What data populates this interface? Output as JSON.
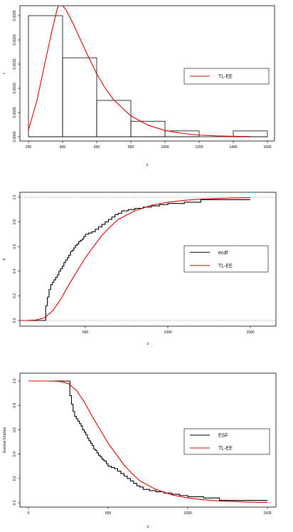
{
  "chart_data": [
    {
      "type": "histogram",
      "xlabel": "z",
      "ylabel": "f",
      "xlim": [
        200,
        1600
      ],
      "ylim": [
        0,
        0.0025
      ],
      "x_ticks": [
        "200",
        "400",
        "600",
        "800",
        "1000",
        "1200",
        "1400",
        "1600"
      ],
      "y_ticks": [
        "0.0000",
        "0.0005",
        "0.0010",
        "0.0015",
        "0.0020",
        "0.0025"
      ],
      "bins": [
        {
          "from": 200,
          "to": 400,
          "density": 0.0025
        },
        {
          "from": 400,
          "to": 600,
          "density": 0.00163
        },
        {
          "from": 600,
          "to": 800,
          "density": 0.00075
        },
        {
          "from": 800,
          "to": 1000,
          "density": 0.00032
        },
        {
          "from": 1000,
          "to": 1200,
          "density": 0.00012
        },
        {
          "from": 1200,
          "to": 1400,
          "density": 0.0
        },
        {
          "from": 1400,
          "to": 1600,
          "density": 0.00012
        }
      ],
      "series": [
        {
          "name": "TL-EE",
          "color": "#dd0000",
          "x": [
            200,
            250,
            300,
            340,
            370,
            390,
            420,
            460,
            500,
            550,
            600,
            650,
            700,
            800,
            900,
            1000,
            1100,
            1200,
            1300,
            1400,
            1500
          ],
          "y": [
            0.00014,
            0.00075,
            0.00158,
            0.00222,
            0.00266,
            0.00275,
            0.00262,
            0.00235,
            0.00204,
            0.00166,
            0.0013,
            0.001,
            0.00076,
            0.00043,
            0.00024,
            0.00013,
            7e-05,
            3.5e-05,
            1.8e-05,
            9e-06,
            4e-06
          ]
        }
      ],
      "legend": "right"
    },
    {
      "type": "line",
      "xlabel": "z",
      "ylabel": "F",
      "xlim": [
        100,
        1650
      ],
      "ylim": [
        0,
        1
      ],
      "x_ticks": [
        "500",
        "1000",
        "1500"
      ],
      "y_ticks": [
        "0.0",
        "0.2",
        "0.4",
        "0.6",
        "0.8",
        "1.0"
      ],
      "reference_lines": [
        0,
        1
      ],
      "series": [
        {
          "name": "ecdf",
          "color": "#000000",
          "step": true,
          "x": [
            100,
            260,
            270,
            280,
            290,
            300,
            310,
            320,
            330,
            340,
            350,
            360,
            370,
            380,
            390,
            400,
            410,
            420,
            430,
            440,
            450,
            460,
            470,
            480,
            490,
            500,
            520,
            540,
            560,
            580,
            600,
            620,
            640,
            660,
            680,
            700,
            720,
            760,
            800,
            850,
            900,
            950,
            1000,
            1100,
            1200,
            1500
          ],
          "y": [
            0,
            0.12,
            0.19,
            0.25,
            0.29,
            0.31,
            0.33,
            0.35,
            0.37,
            0.4,
            0.42,
            0.44,
            0.47,
            0.49,
            0.51,
            0.53,
            0.56,
            0.57,
            0.59,
            0.61,
            0.62,
            0.64,
            0.65,
            0.66,
            0.68,
            0.7,
            0.71,
            0.72,
            0.74,
            0.76,
            0.78,
            0.8,
            0.82,
            0.84,
            0.86,
            0.87,
            0.89,
            0.9,
            0.91,
            0.92,
            0.93,
            0.94,
            0.95,
            0.96,
            0.98,
            0.98
          ]
        },
        {
          "name": "TL-EE",
          "color": "#dd0000",
          "x": [
            100,
            150,
            200,
            250,
            300,
            350,
            400,
            450,
            500,
            550,
            600,
            650,
            700,
            800,
            900,
            1000,
            1100,
            1200,
            1300,
            1400,
            1500
          ],
          "y": [
            0.0,
            0.0005,
            0.004,
            0.02,
            0.075,
            0.17,
            0.29,
            0.4,
            0.51,
            0.6,
            0.69,
            0.76,
            0.82,
            0.89,
            0.935,
            0.96,
            0.975,
            0.985,
            0.99,
            0.995,
            0.997
          ]
        }
      ],
      "legend": "right"
    },
    {
      "type": "line",
      "xlabel": "z",
      "ylabel": "Survival function",
      "xlim": [
        -50,
        1560
      ],
      "ylim": [
        0,
        1
      ],
      "x_ticks": [
        "0",
        "500",
        "1000",
        "1500"
      ],
      "y_ticks": [
        "0.0",
        "0.2",
        "0.4",
        "0.6",
        "0.8",
        "1.0"
      ],
      "series": [
        {
          "name": "ESF",
          "color": "#000000",
          "step": true,
          "x": [
            0,
            260,
            270,
            280,
            290,
            300,
            310,
            320,
            330,
            340,
            350,
            360,
            370,
            380,
            390,
            400,
            410,
            420,
            430,
            440,
            450,
            460,
            470,
            480,
            490,
            500,
            520,
            540,
            560,
            580,
            600,
            620,
            640,
            660,
            680,
            700,
            720,
            760,
            800,
            850,
            900,
            950,
            1000,
            1100,
            1200,
            1500
          ],
          "y": [
            1.0,
            0.88,
            0.81,
            0.75,
            0.71,
            0.69,
            0.67,
            0.65,
            0.63,
            0.6,
            0.58,
            0.56,
            0.53,
            0.51,
            0.49,
            0.47,
            0.44,
            0.43,
            0.41,
            0.39,
            0.38,
            0.36,
            0.35,
            0.34,
            0.32,
            0.3,
            0.29,
            0.28,
            0.26,
            0.24,
            0.22,
            0.2,
            0.18,
            0.16,
            0.14,
            0.13,
            0.11,
            0.1,
            0.09,
            0.08,
            0.07,
            0.06,
            0.05,
            0.04,
            0.02,
            0.02
          ]
        },
        {
          "name": "TL-EE",
          "color": "#dd0000",
          "x": [
            0,
            100,
            150,
            200,
            250,
            300,
            350,
            400,
            450,
            500,
            550,
            600,
            650,
            700,
            800,
            900,
            1000,
            1100,
            1200,
            1300,
            1400,
            1500
          ],
          "y": [
            1.0,
            1.0,
            0.9995,
            0.996,
            0.98,
            0.925,
            0.83,
            0.71,
            0.6,
            0.49,
            0.4,
            0.31,
            0.24,
            0.18,
            0.11,
            0.065,
            0.04,
            0.025,
            0.015,
            0.01,
            0.005,
            0.003
          ]
        }
      ],
      "legend": "right"
    }
  ]
}
